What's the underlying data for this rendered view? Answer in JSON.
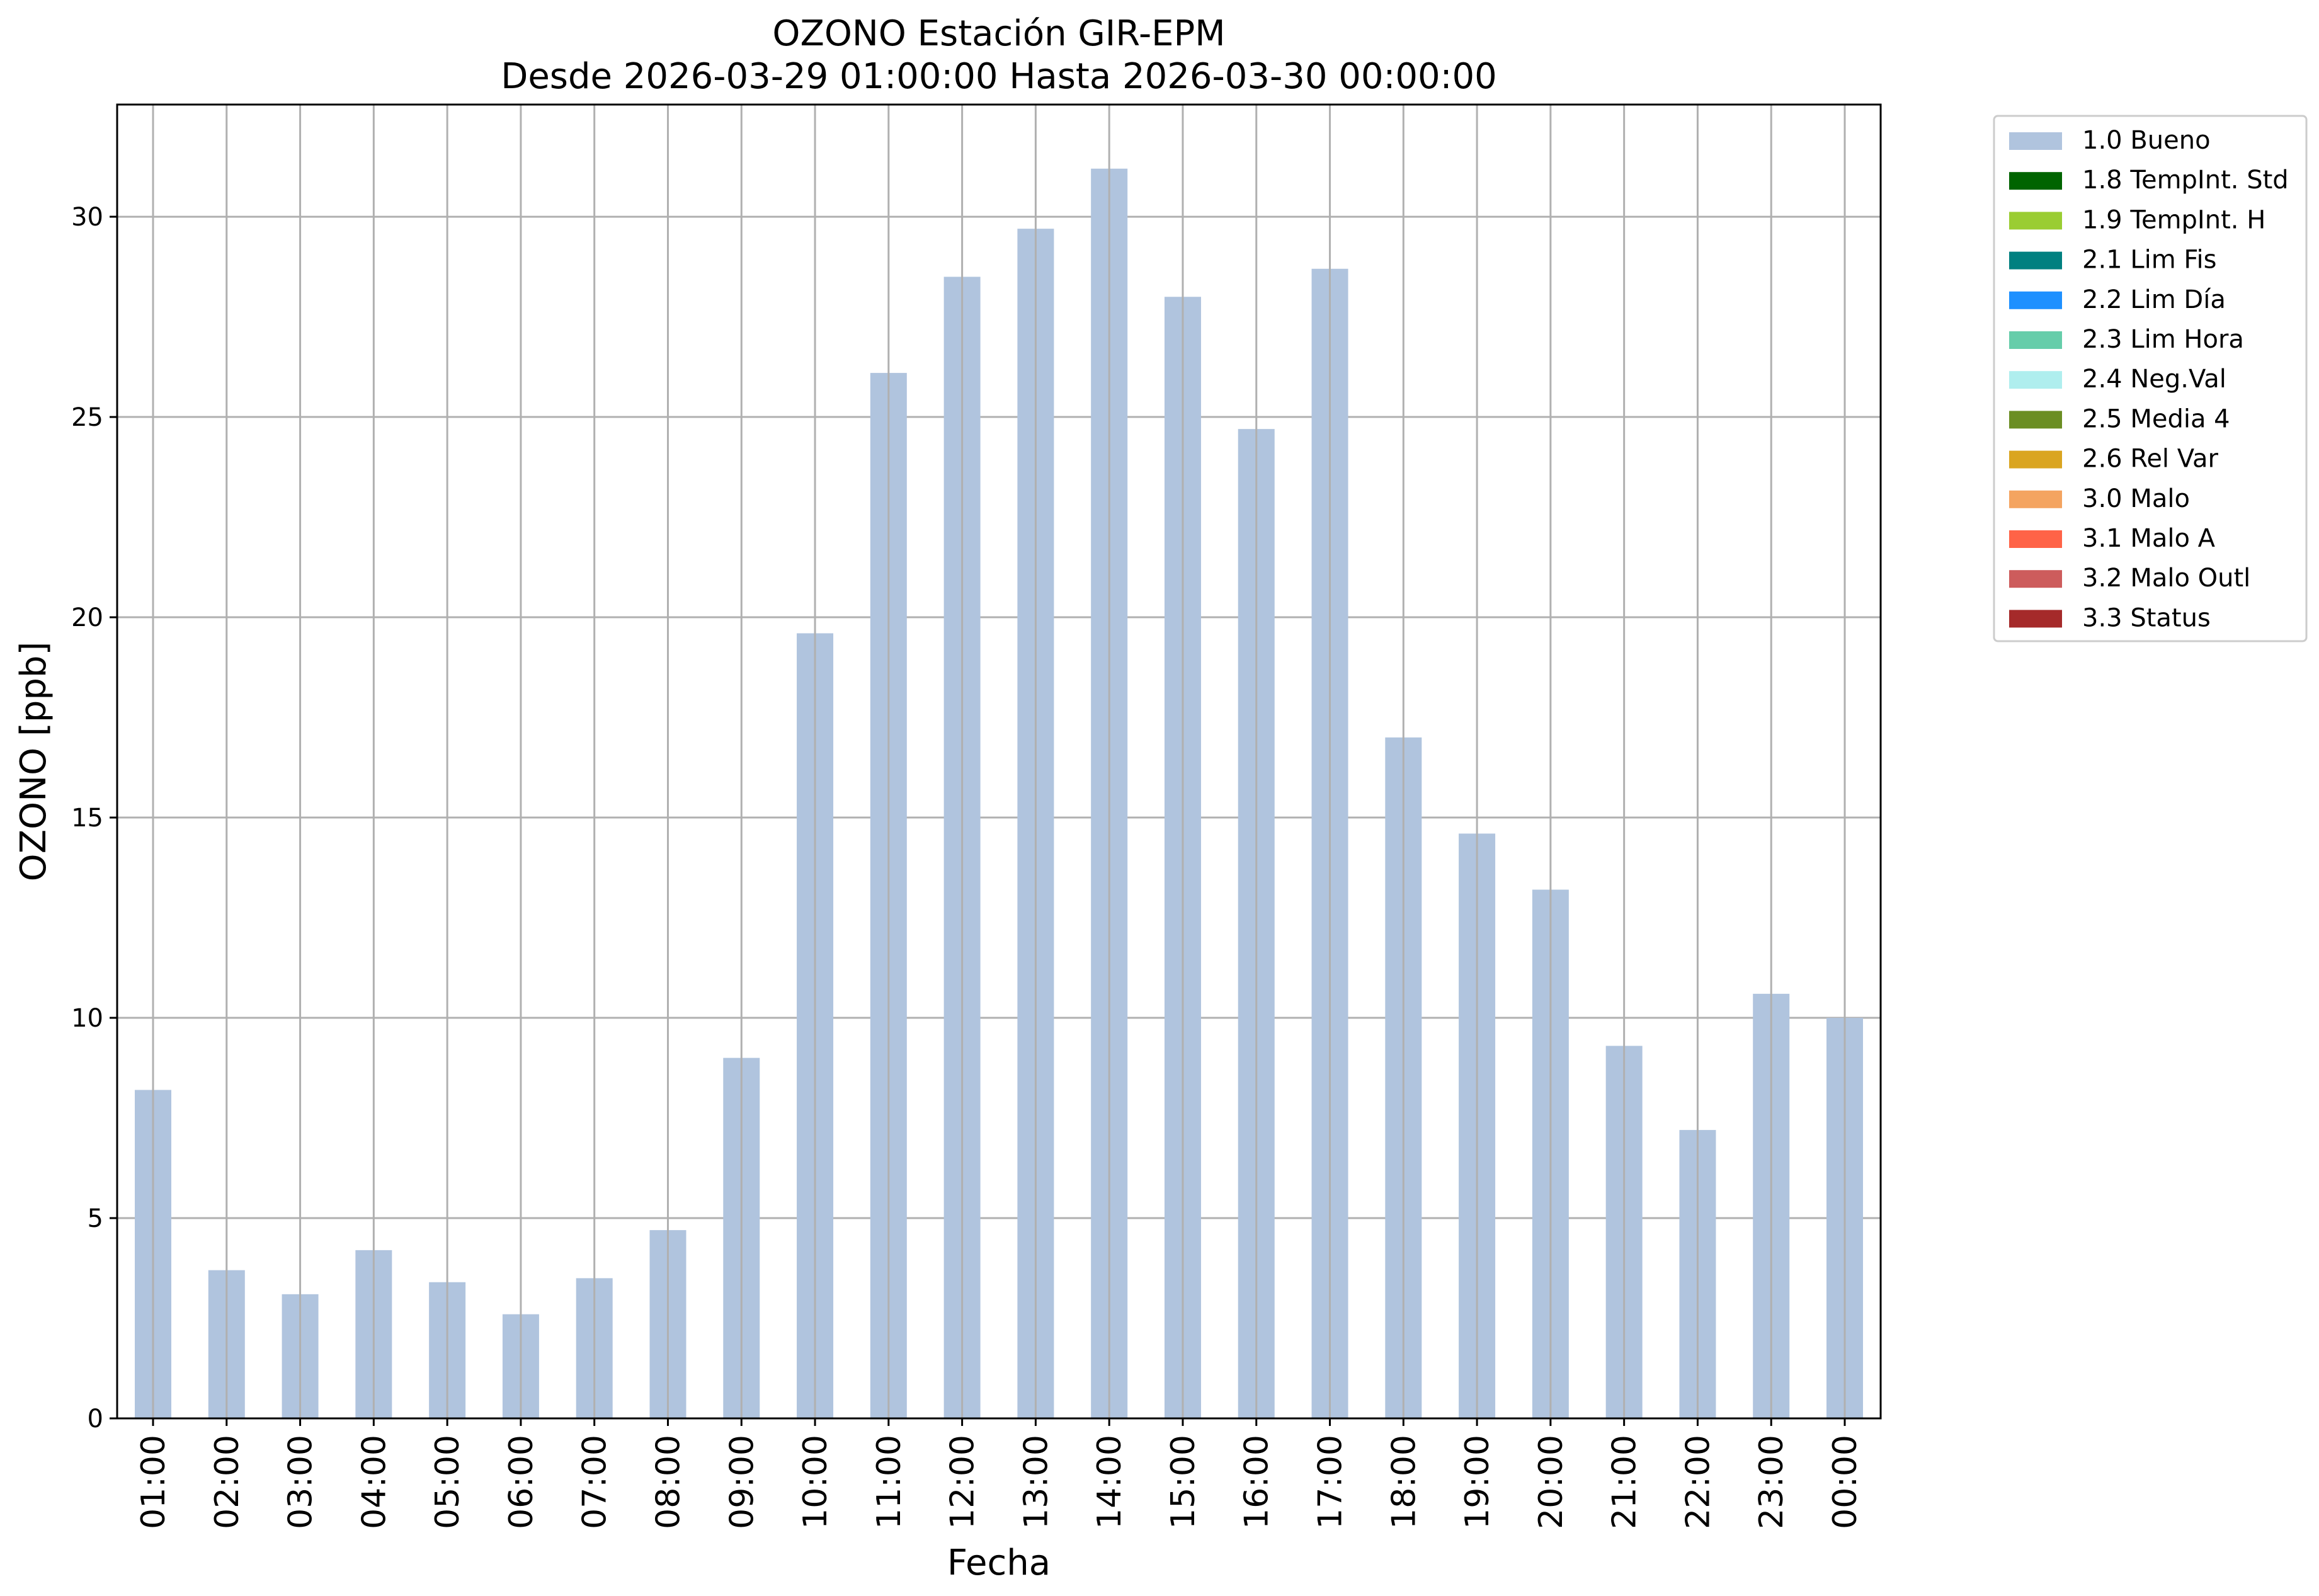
{
  "chart_data": {
    "type": "bar",
    "title_line1": "OZONO Estación GIR-EPM",
    "title_line2": "Desde 2026-03-29 01:00:00 Hasta 2026-03-30 00:00:00",
    "xlabel": "Fecha",
    "ylabel": "OZONO [ppb]",
    "ylim": [
      0,
      32.8
    ],
    "yticks": [
      0,
      5,
      10,
      15,
      20,
      25,
      30
    ],
    "grid": true,
    "legend_position": "outside-top-right",
    "categories": [
      "01:00",
      "02:00",
      "03:00",
      "04:00",
      "05:00",
      "06:00",
      "07:00",
      "08:00",
      "09:00",
      "10:00",
      "11:00",
      "12:00",
      "13:00",
      "14:00",
      "15:00",
      "16:00",
      "17:00",
      "18:00",
      "19:00",
      "20:00",
      "21:00",
      "22:00",
      "23:00",
      "00:00"
    ],
    "series": [
      {
        "name": "1.0 Bueno",
        "color": "#b0c4de",
        "values": [
          8.2,
          3.7,
          3.1,
          4.2,
          3.4,
          2.6,
          3.5,
          4.7,
          9.0,
          19.6,
          26.1,
          28.5,
          29.7,
          31.2,
          28.0,
          24.7,
          28.7,
          17.0,
          14.6,
          13.2,
          9.3,
          7.2,
          10.6,
          10.0
        ]
      }
    ],
    "legend": [
      {
        "label": "1.0 Bueno",
        "color": "#b0c4de"
      },
      {
        "label": "1.8 TempInt. Std",
        "color": "#006400"
      },
      {
        "label": "1.9 TempInt. H",
        "color": "#9acd32"
      },
      {
        "label": "2.1 Lim Fis",
        "color": "#008080"
      },
      {
        "label": "2.2 Lim Día",
        "color": "#1e90ff"
      },
      {
        "label": "2.3 Lim Hora",
        "color": "#66cdaa"
      },
      {
        "label": "2.4 Neg.Val",
        "color": "#afeeee"
      },
      {
        "label": "2.5 Media 4",
        "color": "#6b8e23"
      },
      {
        "label": "2.6 Rel Var",
        "color": "#daa520"
      },
      {
        "label": "3.0 Malo",
        "color": "#f4a460"
      },
      {
        "label": "3.1 Malo A",
        "color": "#ff6347"
      },
      {
        "label": "3.2 Malo Outl",
        "color": "#cd5c5c"
      },
      {
        "label": "3.3 Status",
        "color": "#a52a2a"
      }
    ]
  }
}
